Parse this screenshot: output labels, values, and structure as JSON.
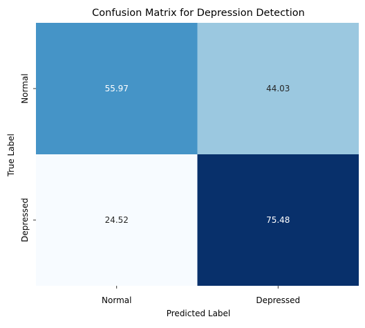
{
  "chart_data": {
    "type": "heatmap",
    "title": "Confusion Matrix for Depression Detection",
    "xlabel": "Predicted Label",
    "ylabel": "True Label",
    "x_categories": [
      "Normal",
      "Depressed"
    ],
    "y_categories": [
      "Normal",
      "Depressed"
    ],
    "values": [
      [
        55.97,
        44.03
      ],
      [
        24.52,
        75.48
      ]
    ],
    "value_format": "2dp",
    "colormap": "Blues",
    "colorbar": false,
    "grid": false,
    "colors": {
      "low": "#f7fbff",
      "high": "#08306b",
      "light_text": "#ffffff",
      "dark_text": "#262626",
      "axis_text": "#000000"
    }
  }
}
